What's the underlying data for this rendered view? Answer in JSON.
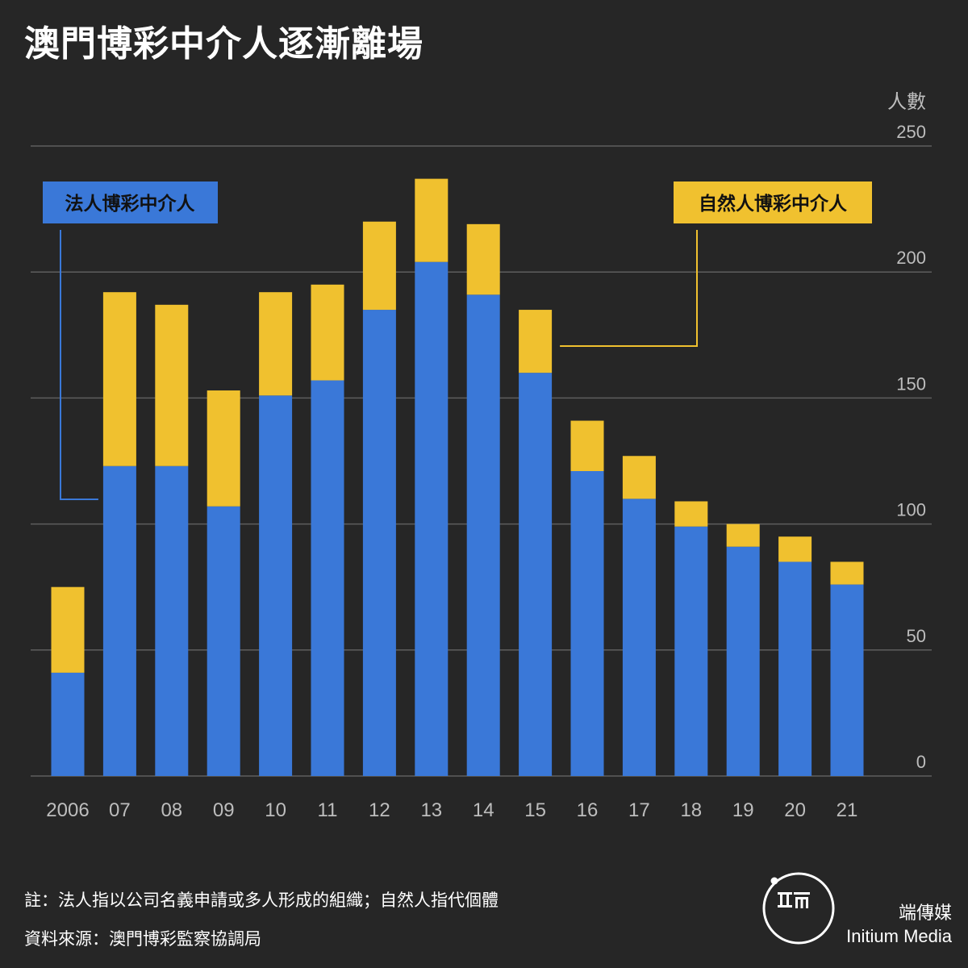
{
  "title": "澳門博彩中介人逐漸離場",
  "colors": {
    "background": "#262626",
    "corporate": "#3a78d8",
    "individual": "#f0c12f",
    "grid": "#5e5e5e",
    "axis_text": "#bdbdbd"
  },
  "chart_data": {
    "type": "bar",
    "stacked": true,
    "categories": [
      "2006",
      "07",
      "08",
      "09",
      "10",
      "11",
      "12",
      "13",
      "14",
      "15",
      "16",
      "17",
      "18",
      "19",
      "20",
      "21"
    ],
    "series": [
      {
        "name": "法人博彩中介人",
        "color": "#3a78d8",
        "values": [
          41,
          123,
          123,
          107,
          151,
          157,
          185,
          204,
          191,
          160,
          121,
          110,
          99,
          91,
          85,
          76
        ]
      },
      {
        "name": "自然人博彩中介人",
        "color": "#f0c12f",
        "values": [
          34,
          69,
          64,
          46,
          41,
          38,
          35,
          33,
          28,
          25,
          20,
          17,
          10,
          9,
          10,
          9
        ]
      }
    ],
    "ylabel": "人數",
    "ylim": [
      0,
      250
    ],
    "yticks": [
      0,
      50,
      100,
      150,
      200,
      250
    ],
    "grid": true,
    "y_axis_position": "right"
  },
  "footnote": "註：法人指以公司名義申請或多人形成的組織；自然人指代個體",
  "source": "資料來源：澳門博彩監察協調局",
  "brand": {
    "name_cn": "端傳媒",
    "name_en": "Initium Media"
  }
}
